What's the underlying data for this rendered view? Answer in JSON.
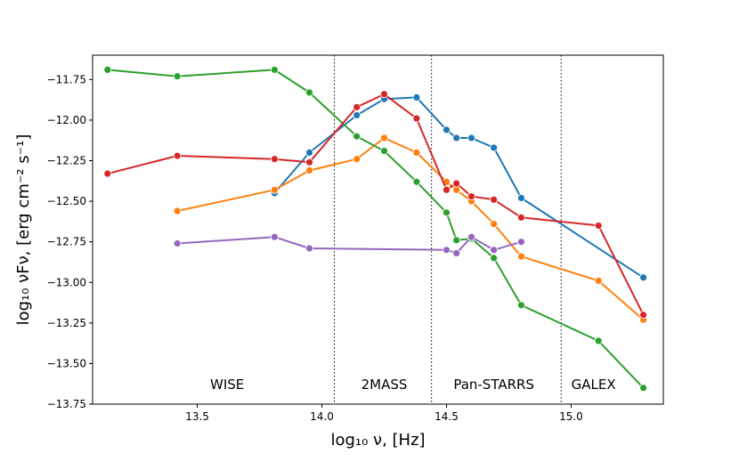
{
  "chart_data": {
    "type": "line",
    "xlabel": "log₁₀ ν, [Hz]",
    "ylabel": "log₁₀ νFν, [erg cm⁻² s⁻¹]",
    "xlim": [
      13.08,
      15.37
    ],
    "ylim": [
      -13.75,
      -11.6
    ],
    "xticks": [
      13.5,
      14.0,
      14.5,
      15.0
    ],
    "xtick_labels": [
      "13.5",
      "14.0",
      "14.5",
      "15.0"
    ],
    "yticks": [
      -11.75,
      -12.0,
      -12.25,
      -12.5,
      -12.75,
      -13.0,
      -13.25,
      -13.5,
      -13.75
    ],
    "ytick_labels": [
      "−11.75",
      "−12.00",
      "−12.25",
      "−12.50",
      "−12.75",
      "−13.00",
      "−13.25",
      "−13.50",
      "−13.75"
    ],
    "grid": false,
    "band_separators": [
      14.05,
      14.44,
      14.96
    ],
    "band_labels": [
      {
        "text": "WISE",
        "x": 13.62,
        "y": -13.63
      },
      {
        "text": "2MASS",
        "x": 14.25,
        "y": -13.63
      },
      {
        "text": "Pan-STARRS",
        "x": 14.69,
        "y": -13.63
      },
      {
        "text": "GALEX",
        "x": 15.09,
        "y": -13.63
      }
    ],
    "series": [
      {
        "color": "#1f77b4",
        "x": [
          13.81,
          13.95,
          14.14,
          14.25,
          14.38,
          14.5,
          14.54,
          14.6,
          14.69,
          14.8,
          15.29
        ],
        "y": [
          -12.45,
          -12.2,
          -11.97,
          -11.87,
          -11.86,
          -12.06,
          -12.11,
          -12.11,
          -12.17,
          -12.48,
          -12.97
        ]
      },
      {
        "color": "#ff7f0e",
        "x": [
          13.42,
          13.81,
          13.95,
          14.14,
          14.25,
          14.38,
          14.5,
          14.54,
          14.6,
          14.69,
          14.8,
          15.11,
          15.29
        ],
        "y": [
          -12.56,
          -12.43,
          -12.31,
          -12.24,
          -12.11,
          -12.2,
          -12.38,
          -12.43,
          -12.5,
          -12.64,
          -12.84,
          -12.99,
          -13.23
        ]
      },
      {
        "color": "#2ca02c",
        "x": [
          13.14,
          13.42,
          13.81,
          13.95,
          14.14,
          14.25,
          14.38,
          14.5,
          14.54,
          14.6,
          14.69,
          14.8,
          15.11,
          15.29
        ],
        "y": [
          -11.69,
          -11.73,
          -11.69,
          -11.83,
          -12.1,
          -12.19,
          -12.38,
          -12.57,
          -12.74,
          -12.73,
          -12.85,
          -13.14,
          -13.36,
          -13.65
        ]
      },
      {
        "color": "#d62728",
        "x": [
          13.14,
          13.42,
          13.81,
          13.95,
          14.14,
          14.25,
          14.38,
          14.5,
          14.54,
          14.6,
          14.69,
          14.8,
          15.11,
          15.29
        ],
        "y": [
          -12.33,
          -12.22,
          -12.24,
          -12.26,
          -11.92,
          -11.84,
          -11.99,
          -12.43,
          -12.39,
          -12.47,
          -12.49,
          -12.6,
          -12.65,
          -13.2
        ]
      },
      {
        "color": "#9467bd",
        "x": [
          13.42,
          13.81,
          13.95,
          14.5,
          14.54,
          14.6,
          14.69,
          14.8
        ],
        "y": [
          -12.76,
          -12.72,
          -12.79,
          -12.8,
          -12.82,
          -12.72,
          -12.8,
          -12.75
        ]
      }
    ]
  }
}
